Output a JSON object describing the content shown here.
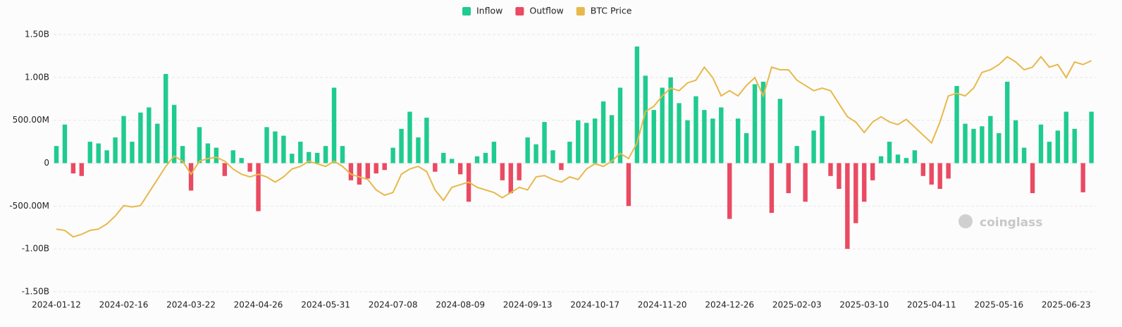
{
  "chart_data": {
    "type": "bar-line",
    "watermark": "coinglass",
    "categories": [
      "2024-01-12",
      null,
      null,
      null,
      null,
      null,
      null,
      null,
      "2024-02-16",
      null,
      null,
      null,
      null,
      null,
      null,
      null,
      "2024-03-22",
      null,
      null,
      null,
      null,
      null,
      null,
      null,
      "2024-04-26",
      null,
      null,
      null,
      null,
      null,
      null,
      null,
      "2024-05-31",
      null,
      null,
      null,
      null,
      null,
      null,
      null,
      "2024-07-08",
      null,
      null,
      null,
      null,
      null,
      null,
      null,
      "2024-08-09",
      null,
      null,
      null,
      null,
      null,
      null,
      null,
      "2024-09-13",
      null,
      null,
      null,
      null,
      null,
      null,
      null,
      "2024-10-17",
      null,
      null,
      null,
      null,
      null,
      null,
      null,
      "2024-11-20",
      null,
      null,
      null,
      null,
      null,
      null,
      null,
      "2024-12-26",
      null,
      null,
      null,
      null,
      null,
      null,
      null,
      "2025-02-03",
      null,
      null,
      null,
      null,
      null,
      null,
      null,
      "2025-03-10",
      null,
      null,
      null,
      null,
      null,
      null,
      null,
      "2025-04-11",
      null,
      null,
      null,
      null,
      null,
      null,
      null,
      "2025-05-16",
      null,
      null,
      null,
      null,
      null,
      null,
      null,
      "2025-06-23",
      null,
      null,
      null
    ],
    "series": [
      {
        "name": "Inflow",
        "color": "#1fcb8f",
        "values": [
          200,
          450,
          null,
          null,
          250,
          230,
          150,
          300,
          550,
          250,
          590,
          650,
          460,
          1040,
          680,
          200,
          null,
          420,
          230,
          180,
          null,
          150,
          60,
          null,
          null,
          420,
          370,
          320,
          110,
          250,
          130,
          120,
          200,
          880,
          200,
          null,
          null,
          null,
          null,
          null,
          180,
          400,
          600,
          300,
          530,
          null,
          120,
          50,
          null,
          null,
          80,
          120,
          250,
          null,
          null,
          null,
          300,
          220,
          480,
          150,
          null,
          250,
          500,
          470,
          520,
          720,
          560,
          880,
          null,
          1360,
          1020,
          620,
          880,
          1000,
          700,
          500,
          780,
          620,
          520,
          650,
          null,
          520,
          350,
          920,
          950,
          null,
          750,
          null,
          200,
          null,
          380,
          550,
          null,
          null,
          null,
          null,
          null,
          null,
          80,
          250,
          100,
          60,
          150,
          null,
          null,
          null,
          null,
          900,
          460,
          400,
          430,
          550,
          350,
          950,
          500,
          180,
          null,
          450,
          250,
          380,
          600,
          400,
          null,
          600
        ]
      },
      {
        "name": "Outflow",
        "color": "#ea4a62",
        "values": [
          null,
          null,
          -120,
          -150,
          null,
          null,
          null,
          null,
          null,
          null,
          null,
          null,
          null,
          null,
          null,
          null,
          -320,
          null,
          null,
          null,
          -150,
          null,
          null,
          -100,
          -560,
          null,
          null,
          null,
          null,
          null,
          null,
          null,
          null,
          null,
          null,
          -200,
          -250,
          -180,
          -120,
          -80,
          null,
          null,
          null,
          null,
          null,
          -100,
          null,
          null,
          -130,
          -450,
          null,
          null,
          null,
          -200,
          -350,
          -200,
          null,
          null,
          null,
          null,
          -80,
          null,
          null,
          null,
          null,
          null,
          null,
          null,
          -500,
          null,
          null,
          null,
          null,
          null,
          null,
          null,
          null,
          null,
          null,
          null,
          -650,
          null,
          null,
          null,
          null,
          -580,
          null,
          -350,
          null,
          -450,
          null,
          null,
          -150,
          -300,
          -1000,
          -700,
          -450,
          -200,
          null,
          null,
          null,
          null,
          null,
          -150,
          -250,
          -300,
          -180,
          null,
          null,
          null,
          null,
          null,
          null,
          null,
          null,
          null,
          -350,
          null,
          null,
          null,
          null,
          null,
          -340,
          null
        ]
      },
      {
        "name": "BTC Price",
        "color": "#e8b84a",
        "axis": "y2",
        "values": [
          43000,
          42500,
          40000,
          41000,
          42500,
          43000,
          45000,
          48000,
          52000,
          51500,
          52000,
          57000,
          62000,
          67000,
          71000,
          69000,
          64000,
          69000,
          70000,
          70500,
          69000,
          66000,
          64000,
          63000,
          64000,
          63000,
          61000,
          63000,
          66000,
          67000,
          69000,
          68000,
          67000,
          69000,
          67000,
          64000,
          63000,
          62000,
          58000,
          56000,
          57000,
          64000,
          66000,
          67000,
          65000,
          58000,
          54000,
          59000,
          60000,
          61000,
          59000,
          58000,
          57000,
          55000,
          57000,
          59000,
          58000,
          63000,
          63500,
          62000,
          61000,
          63000,
          62000,
          66000,
          68000,
          67000,
          69000,
          72000,
          70000,
          76000,
          88000,
          90000,
          94000,
          97000,
          96000,
          99000,
          100000,
          105000,
          101000,
          94000,
          96000,
          94000,
          98000,
          101000,
          94000,
          105000,
          104000,
          104000,
          100000,
          98000,
          96000,
          97000,
          96000,
          91000,
          86000,
          84000,
          80000,
          84000,
          86000,
          84000,
          83000,
          85000,
          82000,
          79000,
          76000,
          84000,
          94000,
          95000,
          94000,
          97000,
          103000,
          104000,
          106000,
          109000,
          107000,
          104000,
          105000,
          109000,
          105000,
          106000,
          101000,
          107000,
          106000,
          107500
        ]
      }
    ],
    "ylim": [
      -1500,
      1500
    ],
    "yticks": [
      {
        "value": -1500,
        "label": "-1.50B"
      },
      {
        "value": -1000,
        "label": "-1.00B"
      },
      {
        "value": -500,
        "label": "-500.00M"
      },
      0,
      {
        "value": 500,
        "label": "500.00M"
      },
      {
        "value": 1000,
        "label": "1.00B"
      },
      {
        "value": 1500,
        "label": "1.50B"
      }
    ],
    "y2lim": [
      19000,
      117500
    ],
    "grid": true
  }
}
